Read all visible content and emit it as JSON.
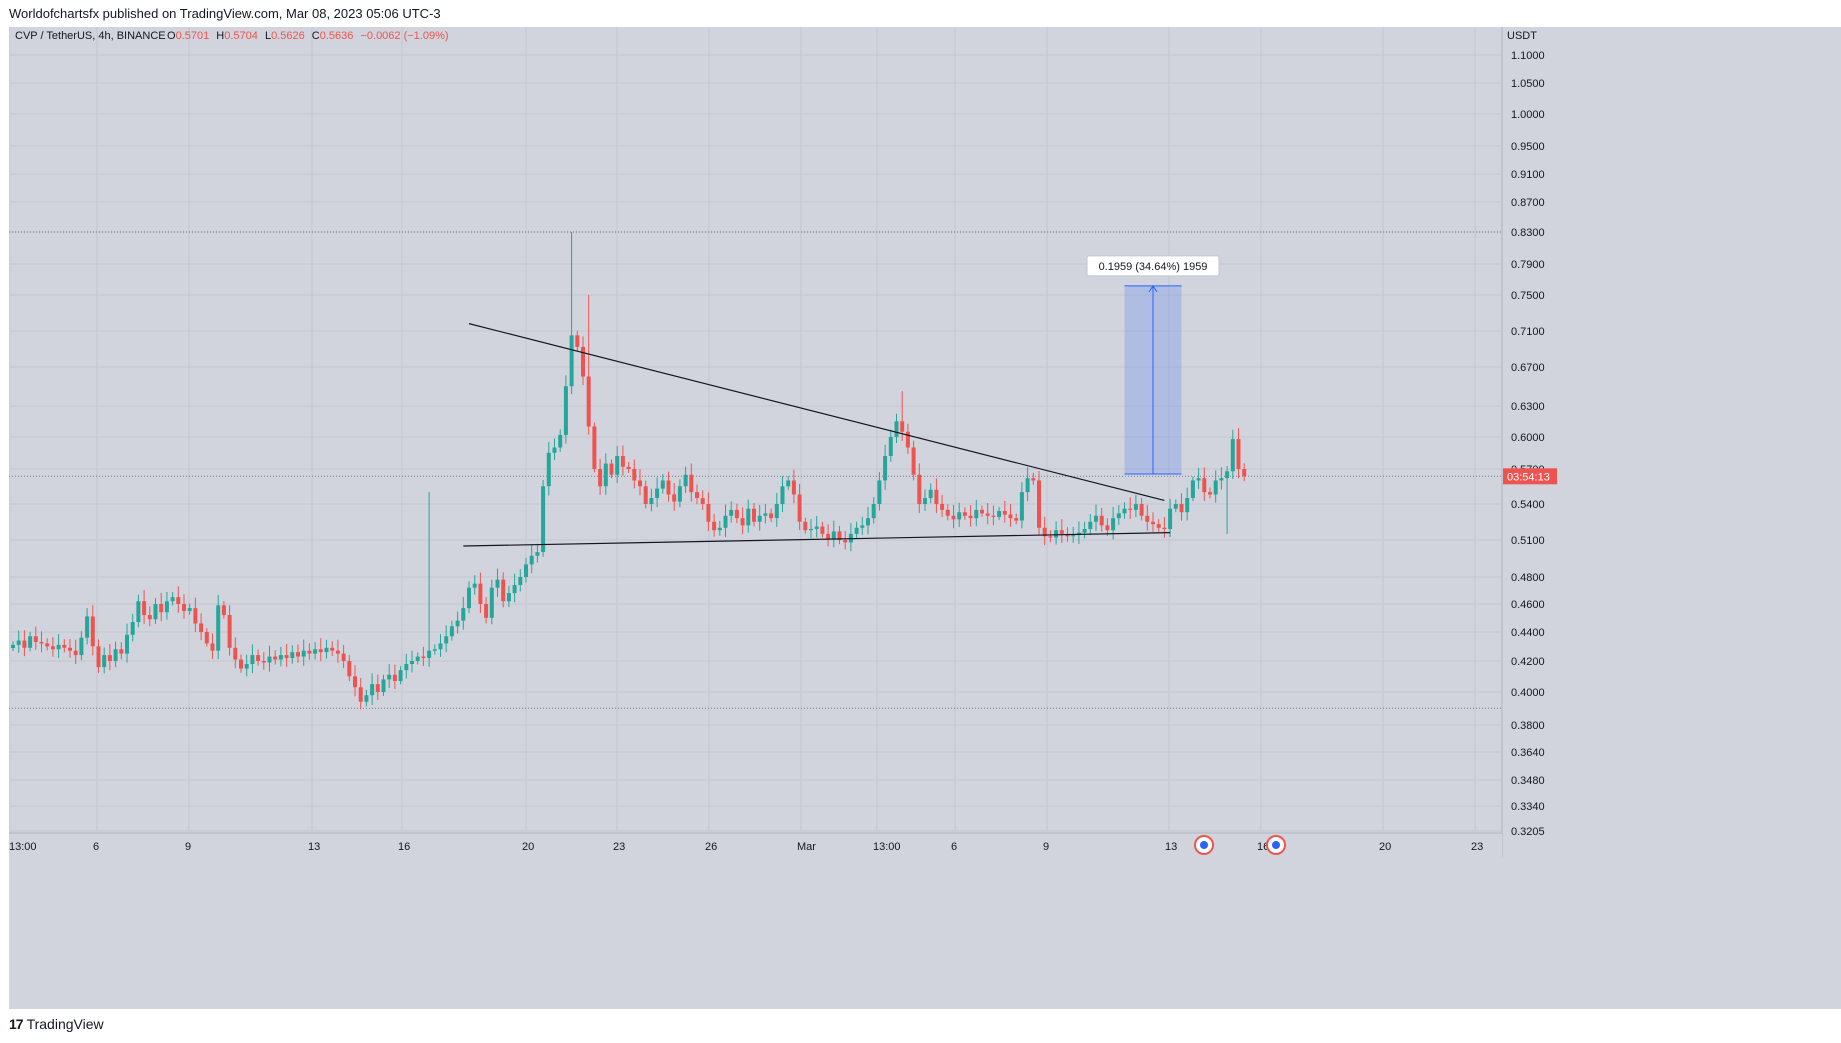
{
  "header": {
    "publish_line": "Worldofchartsfx published on TradingView.com, Mar 08, 2023 05:06 UTC-3"
  },
  "legend": {
    "symbol": "CVP / TetherUS, 4h, BINANCE",
    "o_label": "O",
    "o_value": "0.5701",
    "h_label": "H",
    "h_value": "0.5704",
    "l_label": "L",
    "l_value": "0.5626",
    "c_label": "C",
    "c_value": "0.5636",
    "change": "−0.0062 (−1.09%)"
  },
  "colors": {
    "up": "#26a69a",
    "down": "#ef5350",
    "background": "#d1d4dc",
    "grid": "#c3c6cf",
    "text": "#131722",
    "measure": "#2962ff"
  },
  "price_axis": {
    "currency": "USDT",
    "ticks": [
      "1.1000",
      "1.0500",
      "1.0000",
      "0.9500",
      "0.9100",
      "0.8700",
      "0.8300",
      "0.7900",
      "0.7500",
      "0.7100",
      "0.6700",
      "0.6300",
      "0.6000",
      "0.5700",
      "0.5400",
      "0.5100",
      "0.4800",
      "0.4600",
      "0.4400",
      "0.4200",
      "0.4000",
      "0.3800",
      "0.3640",
      "0.3480",
      "0.3340",
      "0.3205"
    ],
    "countdown": "03:54:13"
  },
  "time_axis": {
    "labels": [
      "13:00",
      "6",
      "9",
      "13",
      "16",
      "20",
      "23",
      "26",
      "Mar",
      "13:00",
      "6",
      "9",
      "13",
      "16",
      "20",
      "23"
    ]
  },
  "measure": {
    "label": "0.1959 (34.64%) 1959"
  },
  "footer": {
    "brand": "TradingView",
    "logo": "17"
  },
  "chart_data": {
    "type": "candlestick",
    "symbol": "CVP / TetherUS",
    "timeframe": "4h",
    "exchange": "BINANCE",
    "y_scale": "log",
    "ylim": [
      0.3205,
      1.12
    ],
    "last_price": 0.5636,
    "horizontal_levels": [
      0.83,
      0.39
    ],
    "trendlines": [
      {
        "name": "descending resistance",
        "from": {
          "bar": 0,
          "price": 0.718
        },
        "to": {
          "bar": 1,
          "price": 0.543
        }
      },
      {
        "name": "ascending support",
        "from": {
          "bar": 0,
          "price": 0.505
        },
        "to": {
          "bar": 1,
          "price": 0.516
        }
      }
    ],
    "measurement": {
      "from_price": 0.5656,
      "to_price": 0.7615,
      "change": 0.1959,
      "percent": 34.64,
      "ticks": 1959
    },
    "series_close": [
      0.431,
      0.434,
      0.429,
      0.437,
      0.433,
      0.432,
      0.43,
      0.428,
      0.431,
      0.429,
      0.427,
      0.424,
      0.436,
      0.451,
      0.43,
      0.416,
      0.424,
      0.42,
      0.428,
      0.425,
      0.438,
      0.447,
      0.462,
      0.452,
      0.449,
      0.46,
      0.454,
      0.462,
      0.465,
      0.46,
      0.455,
      0.457,
      0.446,
      0.44,
      0.432,
      0.427,
      0.459,
      0.452,
      0.429,
      0.421,
      0.415,
      0.418,
      0.424,
      0.42,
      0.419,
      0.423,
      0.421,
      0.424,
      0.422,
      0.426,
      0.423,
      0.427,
      0.425,
      0.428,
      0.426,
      0.429,
      0.427,
      0.425,
      0.42,
      0.41,
      0.403,
      0.394,
      0.398,
      0.405,
      0.4,
      0.408,
      0.411,
      0.407,
      0.414,
      0.418,
      0.42,
      0.423,
      0.422,
      0.427,
      0.428,
      0.432,
      0.437,
      0.444,
      0.448,
      0.457,
      0.472,
      0.475,
      0.46,
      0.45,
      0.472,
      0.478,
      0.462,
      0.468,
      0.474,
      0.48,
      0.49,
      0.497,
      0.5,
      0.555,
      0.585,
      0.59,
      0.602,
      0.65,
      0.705,
      0.692,
      0.66,
      0.61,
      0.57,
      0.555,
      0.575,
      0.565,
      0.582,
      0.572,
      0.57,
      0.56,
      0.555,
      0.54,
      0.545,
      0.553,
      0.56,
      0.548,
      0.542,
      0.555,
      0.565,
      0.55,
      0.545,
      0.54,
      0.525,
      0.518,
      0.52,
      0.53,
      0.535,
      0.528,
      0.522,
      0.536,
      0.525,
      0.53,
      0.532,
      0.528,
      0.54,
      0.555,
      0.56,
      0.548,
      0.525,
      0.518,
      0.519,
      0.521,
      0.515,
      0.511,
      0.517,
      0.51,
      0.508,
      0.515,
      0.52,
      0.522,
      0.528,
      0.54,
      0.56,
      0.582,
      0.6,
      0.615,
      0.605,
      0.59,
      0.565,
      0.54,
      0.545,
      0.552,
      0.54,
      0.535,
      0.53,
      0.527,
      0.533,
      0.53,
      0.528,
      0.535,
      0.532,
      0.53,
      0.529,
      0.534,
      0.531,
      0.528,
      0.526,
      0.55,
      0.562,
      0.56,
      0.52,
      0.513,
      0.512,
      0.518,
      0.515,
      0.513,
      0.514,
      0.516,
      0.519,
      0.525,
      0.53,
      0.522,
      0.518,
      0.528,
      0.532,
      0.536,
      0.535,
      0.54,
      0.53,
      0.525,
      0.523,
      0.52,
      0.519,
      0.536,
      0.54,
      0.533,
      0.545,
      0.56,
      0.562,
      0.55,
      0.548,
      0.56,
      0.562,
      0.568,
      0.598,
      0.57,
      0.5636
    ]
  }
}
